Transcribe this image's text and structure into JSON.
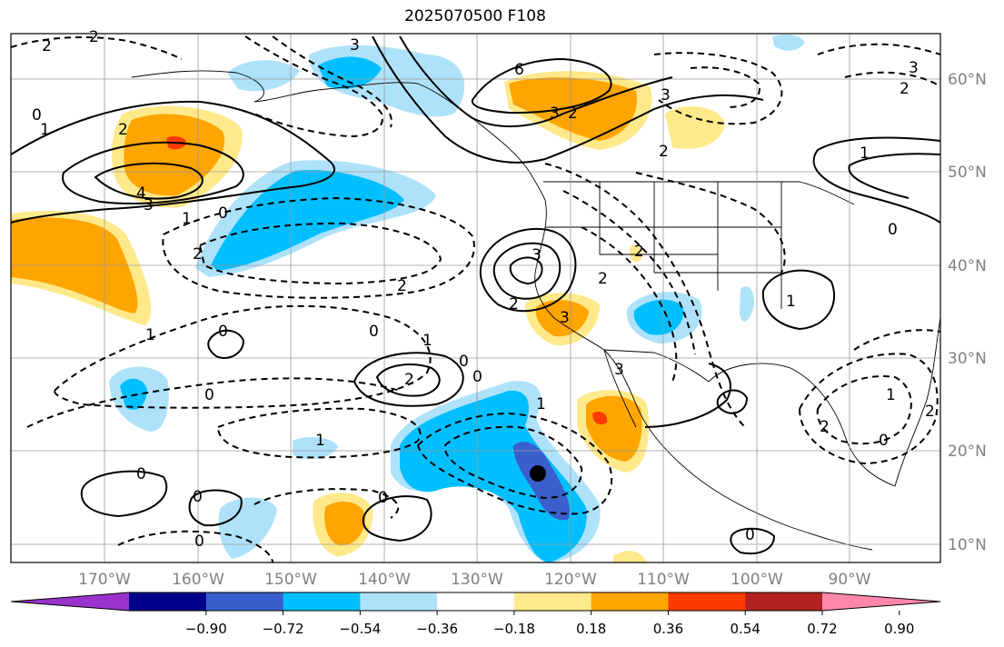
{
  "title": "2025070500 F108",
  "lon_labels": [
    "170°W",
    "160°W",
    "150°W",
    "140°W",
    "130°W",
    "120°W",
    "110°W",
    "100°W",
    "90°W"
  ],
  "lat_labels": [
    "60°N",
    "50°N",
    "40°N",
    "30°N",
    "20°N",
    "10°N"
  ],
  "colorbar": {
    "colors": [
      "#9933cc",
      "#00008b",
      "#3a5fcd",
      "#00bfff",
      "#aee2fb",
      "#ffffff",
      "#ffe98a",
      "#ffa500",
      "#ff3a00",
      "#b22222",
      "#ff88aa"
    ],
    "tick_labels": [
      "−0.90",
      "−0.72",
      "−0.54",
      "−0.36",
      "−0.18",
      "0.18",
      "0.36",
      "0.54",
      "0.72",
      "0.90"
    ]
  },
  "contour_labels": [
    "2",
    "2",
    "3",
    "6",
    "3",
    "0",
    "1",
    "2",
    "4",
    "3",
    "0",
    "1",
    "2",
    "3",
    "2",
    "2",
    "3",
    "2",
    "1",
    "2",
    "0",
    "1",
    "0",
    "2",
    "1",
    "0",
    "0",
    "1",
    "0",
    "0",
    "0",
    "0",
    "0",
    "2",
    "1",
    "3",
    "2",
    "3",
    "1",
    "0",
    "2",
    "0",
    "1",
    "3",
    "2",
    "0",
    "2"
  ]
}
